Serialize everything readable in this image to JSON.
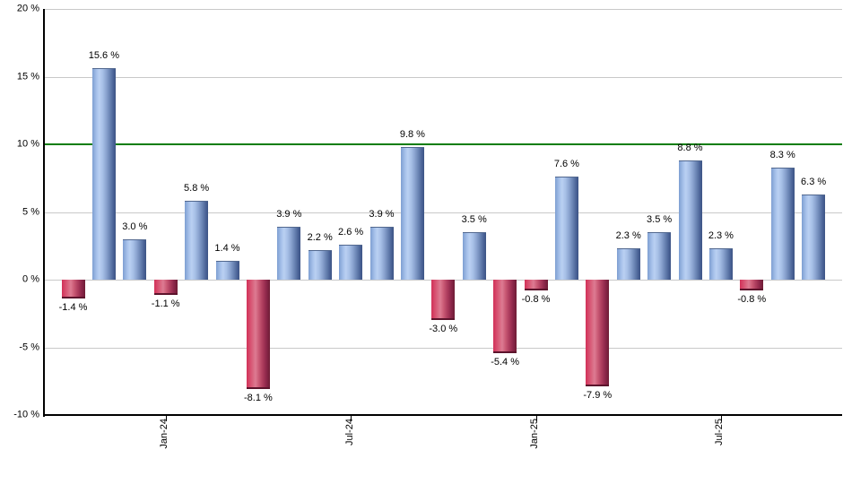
{
  "chart_data": {
    "type": "bar",
    "title": "",
    "value_unit": "%",
    "values": [
      -1.4,
      15.6,
      3.0,
      -1.1,
      5.8,
      1.4,
      -8.1,
      3.9,
      2.2,
      2.6,
      3.9,
      9.8,
      -3.0,
      3.5,
      -5.4,
      -0.8,
      7.6,
      -7.9,
      2.3,
      3.5,
      8.8,
      2.3,
      -0.8,
      8.3,
      6.3
    ],
    "bar_labels": [
      "-1.4 %",
      "15.6 %",
      "3.0 %",
      "-1.1 %",
      "5.8 %",
      "1.4 %",
      "-8.1 %",
      "3.9 %",
      "2.2 %",
      "2.6 %",
      "3.9 %",
      "9.8 %",
      "-3.0 %",
      "3.5 %",
      "-5.4 %",
      "-0.8 %",
      "7.6 %",
      "-7.9 %",
      "2.3 %",
      "3.5 %",
      "8.8 %",
      "2.3 %",
      "-0.8 %",
      "8.3 %",
      "6.3 %"
    ],
    "x_ticks": [
      {
        "label": "Jan-24",
        "bar_index": 3
      },
      {
        "label": "Jul-24",
        "bar_index": 9
      },
      {
        "label": "Jan-25",
        "bar_index": 15
      },
      {
        "label": "Jul-25",
        "bar_index": 21
      }
    ],
    "y_ticks": [
      {
        "label": "20 %",
        "value": 20
      },
      {
        "label": "15 %",
        "value": 15
      },
      {
        "label": "10 %",
        "value": 10
      },
      {
        "label": "5 %",
        "value": 5
      },
      {
        "label": "0 %",
        "value": 0
      },
      {
        "label": "-5 %",
        "value": -5
      },
      {
        "label": "-10 %",
        "value": -10
      }
    ],
    "ylim": [
      -10,
      20
    ],
    "grid": true,
    "legend_position": "none",
    "reference_line": {
      "value": 10,
      "color": "#0a7d0a"
    },
    "colors": {
      "positive_bar_base": "#7e9fd2",
      "positive_bar_light": "#bad0f2",
      "positive_bar_dark": "#3d5484",
      "negative_bar_base": "#d23058",
      "negative_bar_light": "#dd7b92",
      "negative_bar_dark": "#6e1c36",
      "gridline": "#c9c9c9",
      "axis": "#000000",
      "text": "#000000",
      "background": "#ffffff"
    }
  }
}
